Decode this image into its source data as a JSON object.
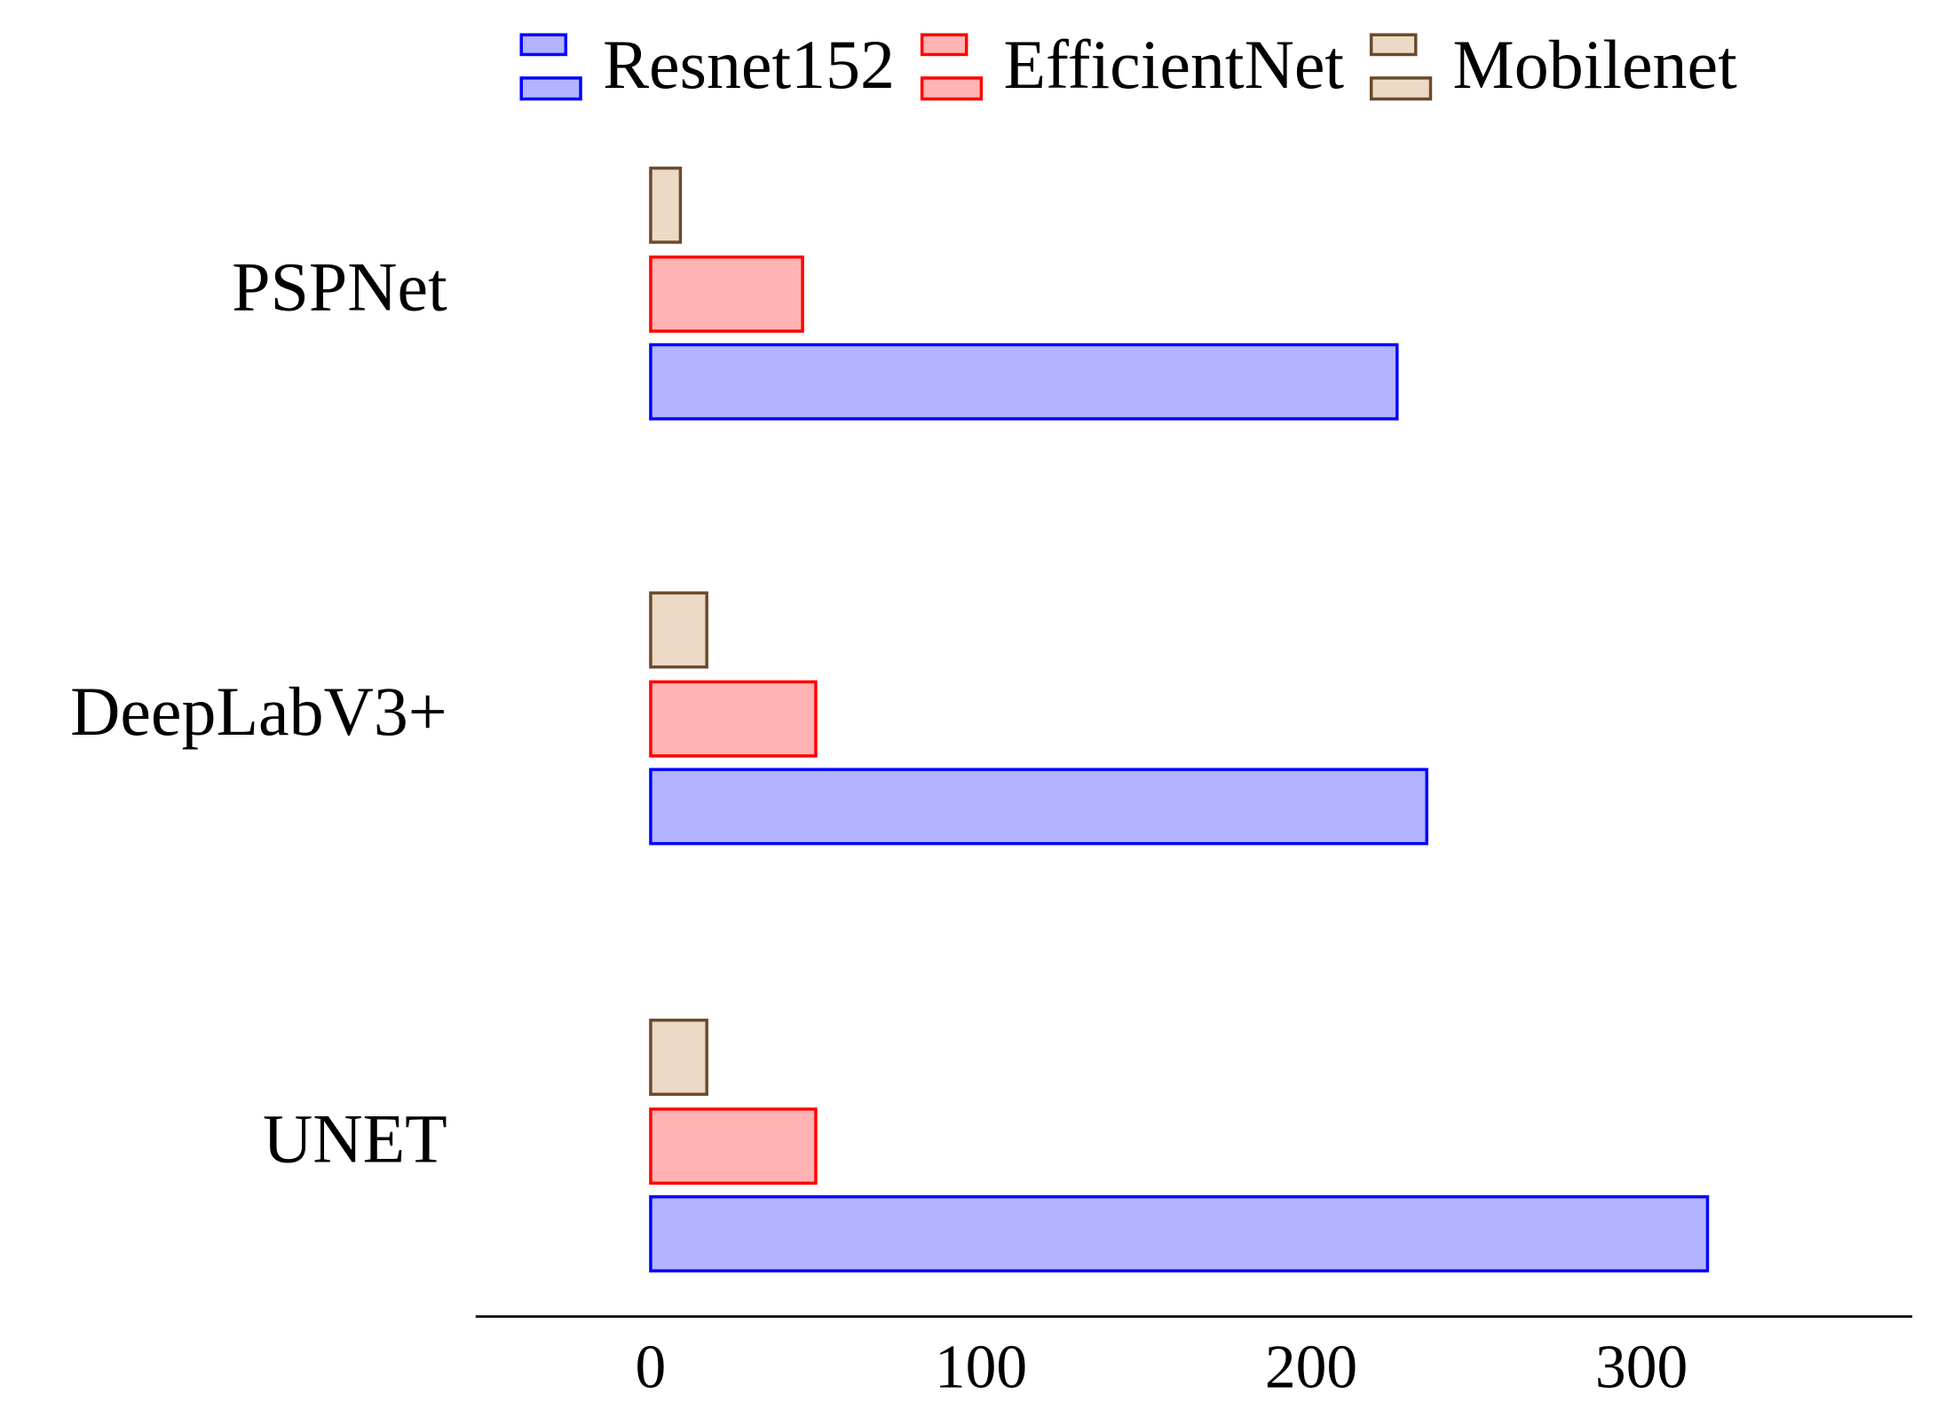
{
  "chart_data": {
    "type": "barh",
    "categories": [
      "PSPNet",
      "DeepLabV3+",
      "UNET"
    ],
    "series": [
      {
        "name": "Resnet152",
        "color": "#b3b3ff",
        "edgecolor": "#0000ff",
        "values": [
          226,
          235,
          320
        ]
      },
      {
        "name": "EfficientNet",
        "color": "#ffb3b3",
        "edgecolor": "#ff0000",
        "values": [
          46,
          50,
          50
        ]
      },
      {
        "name": "Mobilenet",
        "color": "#ecd9c6",
        "edgecolor": "#6b4a2b",
        "values": [
          9,
          17,
          17
        ]
      }
    ],
    "xlim": [
      -53,
      382
    ],
    "xticks": [
      0,
      100,
      200,
      300
    ],
    "grid": false,
    "legend": "top"
  }
}
